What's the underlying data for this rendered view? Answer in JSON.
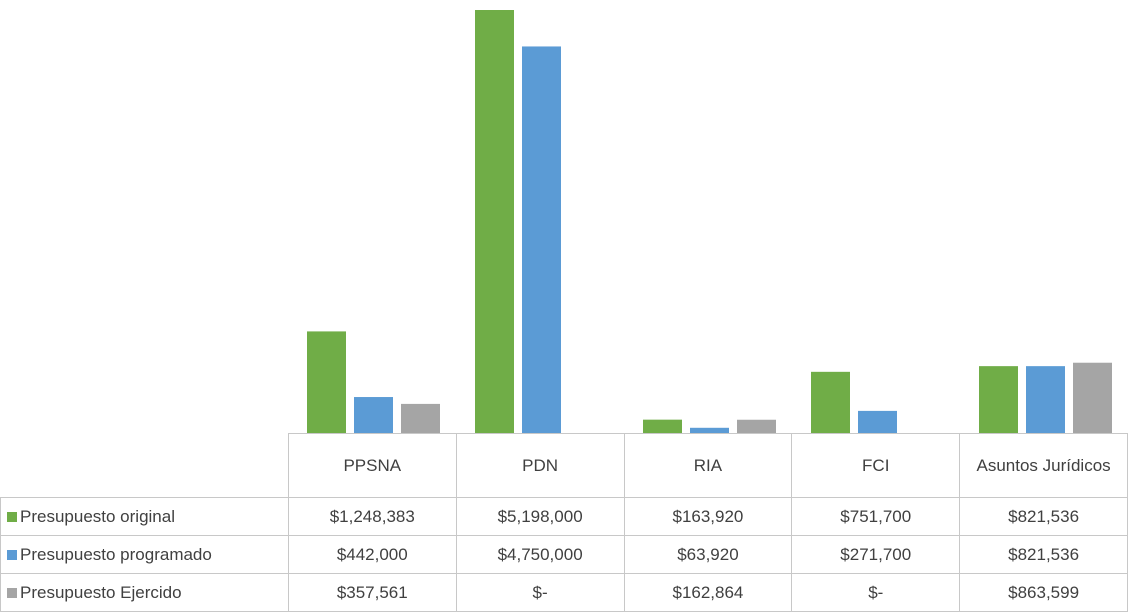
{
  "chart_data": {
    "type": "bar",
    "categories": [
      "PPSNA",
      "PDN",
      "RIA",
      "FCI",
      "Asuntos Jurídicos"
    ],
    "series": [
      {
        "name": "Presupuesto  original",
        "color": "#70ad47",
        "values": [
          1248383,
          5198000,
          163920,
          751700,
          821536
        ],
        "value_labels": [
          "$1,248,383",
          "$5,198,000",
          "$163,920",
          "$751,700",
          "$821,536"
        ]
      },
      {
        "name": "Presupuesto programado",
        "color": "#5b9bd5",
        "values": [
          442000,
          4750000,
          63920,
          271700,
          821536
        ],
        "value_labels": [
          "$442,000",
          "$4,750,000",
          "$63,920",
          "$271,700",
          "$821,536"
        ]
      },
      {
        "name": "Presupuesto Ejercido",
        "color": "#a5a5a5",
        "values": [
          357561,
          0,
          162864,
          0,
          863599
        ],
        "value_labels": [
          "$357,561",
          "$-",
          "$162,864",
          "$-",
          "$863,599"
        ]
      }
    ]
  }
}
